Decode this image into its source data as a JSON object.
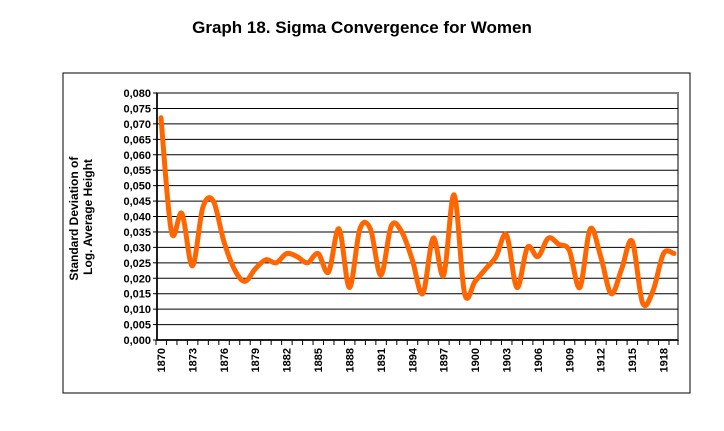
{
  "chart_data": {
    "type": "line",
    "title": "Graph 18. Sigma Convergence for Women",
    "xlabel": "",
    "ylabel_lines": [
      "Standard Deviation of",
      "Log. Average Height"
    ],
    "ylim": [
      0,
      0.08
    ],
    "yticks": [
      "0,000",
      "0,005",
      "0,010",
      "0,015",
      "0,020",
      "0,025",
      "0,030",
      "0,035",
      "0,040",
      "0,045",
      "0,050",
      "0,055",
      "0,060",
      "0,065",
      "0,070",
      "0,075",
      "0,080"
    ],
    "xtick_labels": [
      "1870",
      "1873",
      "1876",
      "1879",
      "1882",
      "1885",
      "1888",
      "1891",
      "1894",
      "1897",
      "1900",
      "1903",
      "1906",
      "1909",
      "1912",
      "1915",
      "1918"
    ],
    "grid": true,
    "line_color": "#FF6600",
    "x": [
      1870,
      1871,
      1872,
      1873,
      1874,
      1875,
      1876,
      1877,
      1878,
      1879,
      1880,
      1881,
      1882,
      1883,
      1884,
      1885,
      1886,
      1887,
      1888,
      1889,
      1890,
      1891,
      1892,
      1893,
      1894,
      1895,
      1896,
      1897,
      1898,
      1899,
      1900,
      1901,
      1902,
      1903,
      1904,
      1905,
      1906,
      1907,
      1908,
      1909,
      1910,
      1911,
      1912,
      1913,
      1914,
      1915,
      1916,
      1917,
      1918,
      1919
    ],
    "series": [
      {
        "name": "Women",
        "values": [
          0.072,
          0.035,
          0.041,
          0.024,
          0.043,
          0.045,
          0.032,
          0.023,
          0.019,
          0.023,
          0.026,
          0.025,
          0.028,
          0.027,
          0.025,
          0.028,
          0.022,
          0.036,
          0.017,
          0.036,
          0.036,
          0.021,
          0.037,
          0.035,
          0.026,
          0.015,
          0.033,
          0.021,
          0.047,
          0.015,
          0.019,
          0.023,
          0.027,
          0.034,
          0.017,
          0.03,
          0.027,
          0.033,
          0.031,
          0.029,
          0.017,
          0.036,
          0.027,
          0.015,
          0.023,
          0.032,
          0.012,
          0.016,
          0.028,
          0.028
        ]
      }
    ]
  }
}
